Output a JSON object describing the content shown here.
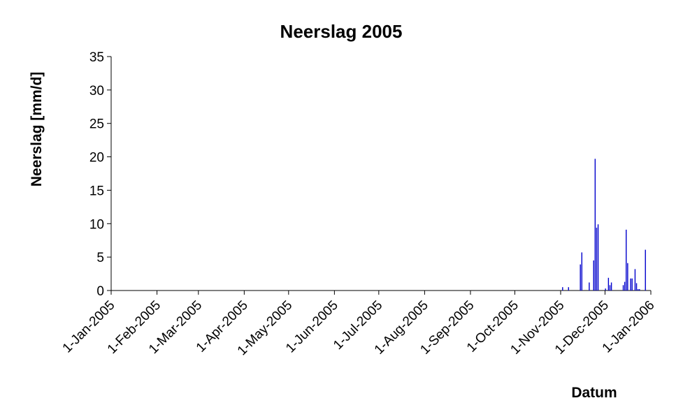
{
  "chart_data": {
    "type": "bar",
    "title": "Neerslag 2005",
    "x_label": "Datum",
    "y_label": "Neerslag [mm/d]",
    "color": "#0000cc",
    "x": [
      "2005-11-02",
      "2005-11-06",
      "2005-11-14",
      "2005-11-15",
      "2005-11-20",
      "2005-11-23",
      "2005-11-24",
      "2005-11-25",
      "2005-11-26",
      "2005-12-01",
      "2005-12-03",
      "2005-12-04",
      "2005-12-05",
      "2005-12-13",
      "2005-12-14",
      "2005-12-15",
      "2005-12-16",
      "2005-12-18",
      "2005-12-19",
      "2005-12-21",
      "2005-12-22",
      "2005-12-23",
      "2005-12-24",
      "2005-12-28"
    ],
    "values": [
      0.5,
      0.5,
      3.9,
      5.7,
      1.2,
      4.5,
      19.7,
      9.4,
      9.9,
      0.3,
      1.9,
      0.8,
      1.2,
      0.8,
      1.3,
      9.1,
      4.1,
      1.8,
      1.8,
      3.2,
      1.1,
      0.2,
      0.2,
      6.1
    ],
    "xlim": [
      "2005-01-01",
      "2006-01-01"
    ],
    "xticks": [
      {
        "value": "2005-01-01",
        "label": "1-Jan-2005"
      },
      {
        "value": "2005-02-01",
        "label": "1-Feb-2005"
      },
      {
        "value": "2005-03-01",
        "label": "1-Mar-2005"
      },
      {
        "value": "2005-04-01",
        "label": "1-Apr-2005"
      },
      {
        "value": "2005-05-01",
        "label": "1-May-2005"
      },
      {
        "value": "2005-06-01",
        "label": "1-Jun-2005"
      },
      {
        "value": "2005-07-01",
        "label": "1-Jul-2005"
      },
      {
        "value": "2005-08-01",
        "label": "1-Aug-2005"
      },
      {
        "value": "2005-09-01",
        "label": "1-Sep-2005"
      },
      {
        "value": "2005-10-01",
        "label": "1-Oct-2005"
      },
      {
        "value": "2005-11-01",
        "label": "1-Nov-2005"
      },
      {
        "value": "2005-12-01",
        "label": "1-Dec-2005"
      },
      {
        "value": "2006-01-01",
        "label": "1-Jan-2006"
      }
    ],
    "ylim": [
      0,
      35
    ],
    "yticks": [
      0,
      5,
      10,
      15,
      20,
      25,
      30,
      35
    ]
  }
}
